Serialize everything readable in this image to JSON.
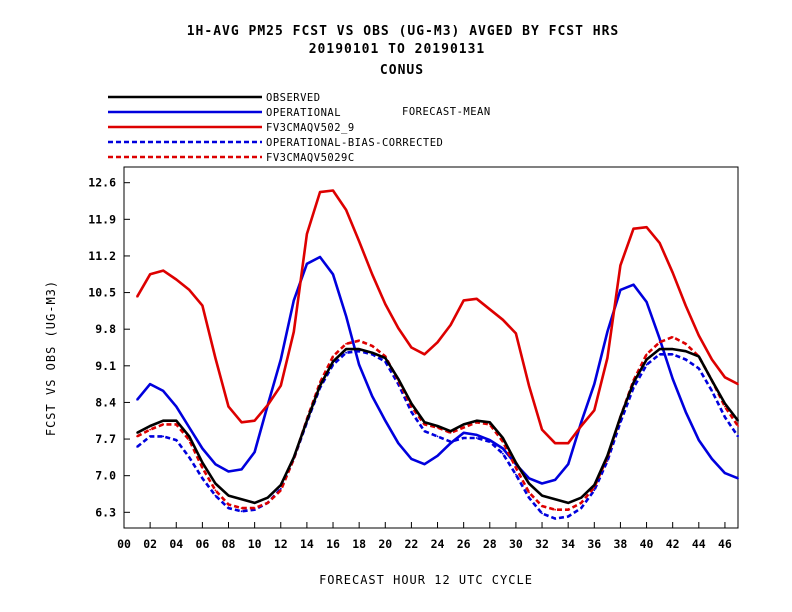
{
  "titles": {
    "line1": "1H-AVG PM25 FCST VS OBS (UG-M3)  AVGED BY FCST HRS",
    "line2": "20190101 TO 20190131",
    "line3": "CONUS"
  },
  "legend_note": "FORECAST-MEAN",
  "chart_data": {
    "type": "line",
    "title": "1H-AVG PM25 FCST VS OBS (UG-M3)  AVGED BY FCST HRS",
    "xlabel": "FORECAST HOUR  12 UTC CYCLE",
    "ylabel": "FCST VS OBS (UG-M3)",
    "xlim": [
      0,
      47
    ],
    "ylim": [
      6.0,
      12.9
    ],
    "xticks": [
      "00",
      "02",
      "04",
      "06",
      "08",
      "10",
      "12",
      "14",
      "16",
      "18",
      "20",
      "22",
      "24",
      "26",
      "28",
      "30",
      "32",
      "34",
      "36",
      "38",
      "40",
      "42",
      "44",
      "46"
    ],
    "yticks": [
      "6.3",
      "7.0",
      "7.7",
      "8.4",
      "9.1",
      "9.8",
      "10.5",
      "11.2",
      "11.9",
      "12.6"
    ],
    "grid": false,
    "legend_position": "top-left",
    "x": [
      1,
      2,
      3,
      4,
      5,
      6,
      7,
      8,
      9,
      10,
      11,
      12,
      13,
      14,
      15,
      16,
      17,
      18,
      19,
      20,
      21,
      22,
      23,
      24,
      25,
      26,
      27,
      28,
      29,
      30,
      31,
      32,
      33,
      34,
      35,
      36,
      37,
      38,
      39,
      40,
      41,
      42,
      43,
      44,
      45,
      46,
      47
    ],
    "series": [
      {
        "name": "OBSERVED",
        "color": "#000000",
        "dash": false,
        "values": [
          7.82,
          7.95,
          8.05,
          8.05,
          7.75,
          7.25,
          6.85,
          6.62,
          6.55,
          6.48,
          6.58,
          6.82,
          7.35,
          8.05,
          8.72,
          9.18,
          9.42,
          9.42,
          9.35,
          9.25,
          8.85,
          8.38,
          8.02,
          7.95,
          7.85,
          7.98,
          8.05,
          8.02,
          7.72,
          7.25,
          6.85,
          6.62,
          6.55,
          6.48,
          6.58,
          6.82,
          7.38,
          8.12,
          8.78,
          9.22,
          9.42,
          9.42,
          9.38,
          9.28,
          8.82,
          8.38,
          8.05
        ]
      },
      {
        "name": "OPERATIONAL",
        "color": "#0000dd",
        "dash": false,
        "values": [
          8.45,
          8.75,
          8.62,
          8.32,
          7.92,
          7.52,
          7.22,
          7.08,
          7.12,
          7.45,
          8.35,
          9.22,
          10.35,
          11.05,
          11.18,
          10.85,
          10.05,
          9.12,
          8.52,
          8.05,
          7.62,
          7.32,
          7.22,
          7.38,
          7.62,
          7.82,
          7.78,
          7.68,
          7.52,
          7.22,
          6.95,
          6.85,
          6.92,
          7.22,
          8.02,
          8.75,
          9.75,
          10.55,
          10.65,
          10.32,
          9.62,
          8.85,
          8.22,
          7.68,
          7.32,
          7.05,
          6.95
        ]
      },
      {
        "name": "FV3CMAQV502_9",
        "color": "#dd0000",
        "dash": false,
        "values": [
          10.42,
          10.85,
          10.92,
          10.75,
          10.55,
          10.25,
          9.25,
          8.32,
          8.02,
          8.05,
          8.35,
          8.72,
          9.75,
          11.62,
          12.42,
          12.45,
          12.08,
          11.48,
          10.85,
          10.28,
          9.82,
          9.45,
          9.32,
          9.55,
          9.88,
          10.35,
          10.38,
          10.18,
          9.98,
          9.72,
          8.72,
          7.88,
          7.62,
          7.62,
          7.95,
          8.25,
          9.25,
          11.02,
          11.72,
          11.75,
          11.45,
          10.88,
          10.25,
          9.68,
          9.22,
          8.88,
          8.75
        ]
      },
      {
        "name": "OPERATIONAL-BIAS-CORRECTED",
        "color": "#0000dd",
        "dash": true,
        "values": [
          7.55,
          7.75,
          7.75,
          7.68,
          7.35,
          6.95,
          6.62,
          6.38,
          6.32,
          6.35,
          6.48,
          6.75,
          7.32,
          8.02,
          8.68,
          9.12,
          9.35,
          9.38,
          9.32,
          9.18,
          8.75,
          8.22,
          7.85,
          7.75,
          7.65,
          7.72,
          7.72,
          7.65,
          7.42,
          7.02,
          6.58,
          6.28,
          6.18,
          6.22,
          6.38,
          6.72,
          7.28,
          8.02,
          8.68,
          9.12,
          9.32,
          9.32,
          9.22,
          9.05,
          8.62,
          8.12,
          7.75
        ]
      },
      {
        "name": "FV3CMAQV5029C",
        "color": "#dd0000",
        "dash": true,
        "values": [
          7.75,
          7.88,
          7.98,
          7.98,
          7.68,
          7.15,
          6.72,
          6.45,
          6.38,
          6.38,
          6.48,
          6.72,
          7.32,
          8.08,
          8.78,
          9.28,
          9.52,
          9.58,
          9.48,
          9.28,
          8.82,
          8.32,
          7.98,
          7.92,
          7.82,
          7.92,
          8.02,
          7.98,
          7.65,
          7.15,
          6.68,
          6.42,
          6.35,
          6.35,
          6.48,
          6.78,
          7.35,
          8.12,
          8.82,
          9.32,
          9.55,
          9.65,
          9.52,
          9.28,
          8.82,
          8.32,
          7.95
        ]
      }
    ]
  }
}
